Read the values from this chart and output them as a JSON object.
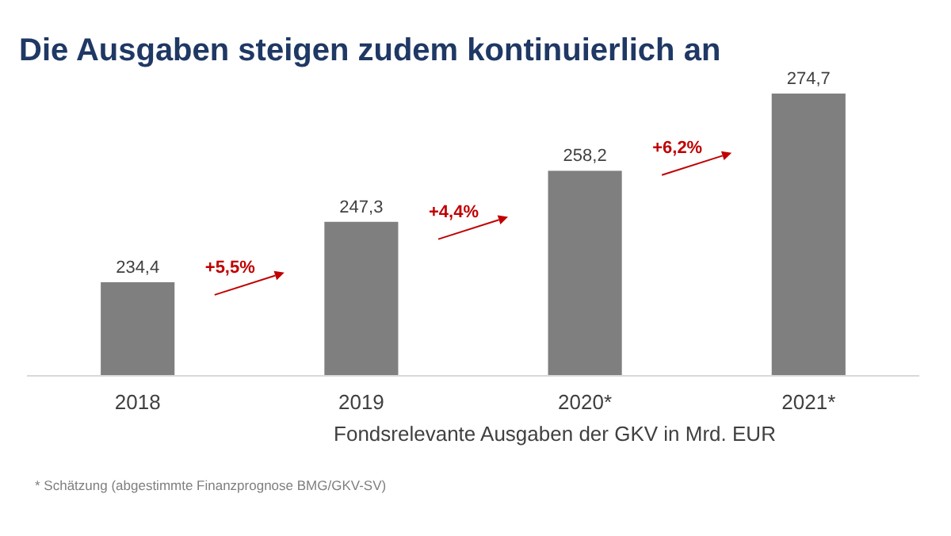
{
  "chart_data": {
    "type": "bar",
    "title": "Die Ausgaben steigen zudem kontinuierlich an",
    "xlabel": "Fondsrelevante Ausgaben der GKV in Mrd. EUR",
    "categories": [
      "2018",
      "2019",
      "2020*",
      "2021*"
    ],
    "values": [
      234.4,
      247.3,
      258.2,
      274.7
    ],
    "value_labels": [
      "234,4",
      "247,3",
      "258,2",
      "274,7"
    ],
    "color": "#7f7f7f",
    "ylim": [
      214.4,
      274.7
    ],
    "annotations": [
      "+5,5%",
      "+4,4%",
      "+6,2%",
      "* Schätzung (abgestimmte Finanzprognose BMG/GKV-SV)"
    ]
  }
}
